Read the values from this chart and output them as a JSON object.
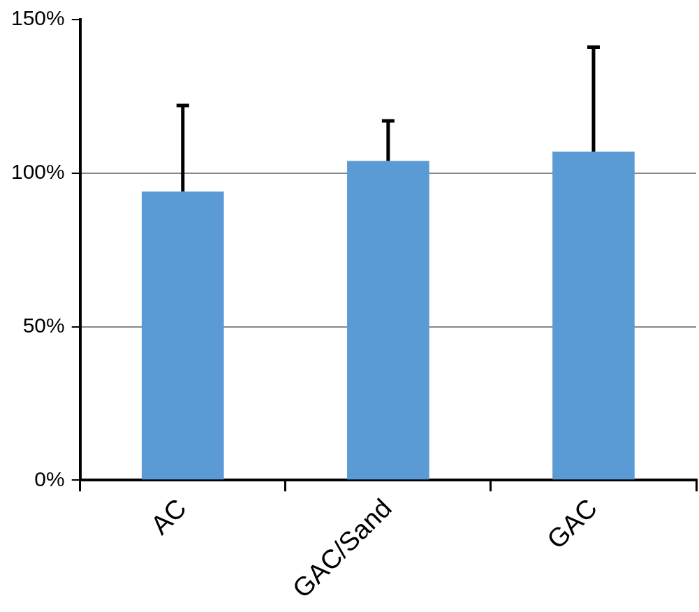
{
  "chart_data": {
    "type": "bar",
    "categories": [
      "AC",
      "GAC/Sand",
      "GAC"
    ],
    "values": [
      94,
      104,
      107
    ],
    "errors": [
      [
        94,
        122
      ],
      [
        104,
        117
      ],
      [
        107,
        141
      ]
    ],
    "color": "#5b9bd5",
    "ylim": [
      0,
      150
    ],
    "yticks": [
      {
        "value": 0,
        "label": "0%"
      },
      {
        "value": 50,
        "label": "50%"
      },
      {
        "value": 100,
        "label": "100%"
      },
      {
        "value": 150,
        "label": "150%"
      }
    ],
    "grid": "y",
    "legend": false
  }
}
